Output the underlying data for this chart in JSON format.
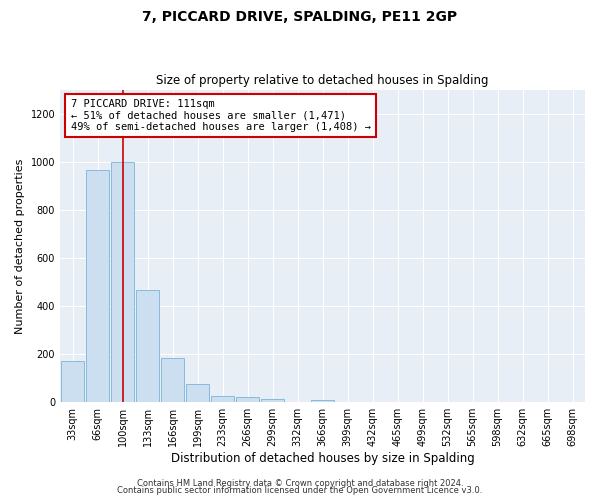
{
  "title": "7, PICCARD DRIVE, SPALDING, PE11 2GP",
  "subtitle": "Size of property relative to detached houses in Spalding",
  "xlabel": "Distribution of detached houses by size in Spalding",
  "ylabel": "Number of detached properties",
  "bar_labels": [
    "33sqm",
    "66sqm",
    "100sqm",
    "133sqm",
    "166sqm",
    "199sqm",
    "233sqm",
    "266sqm",
    "299sqm",
    "332sqm",
    "366sqm",
    "399sqm",
    "432sqm",
    "465sqm",
    "499sqm",
    "532sqm",
    "565sqm",
    "598sqm",
    "632sqm",
    "665sqm",
    "698sqm"
  ],
  "bar_values": [
    170,
    965,
    1000,
    465,
    185,
    75,
    25,
    20,
    15,
    0,
    10,
    0,
    0,
    0,
    0,
    0,
    0,
    0,
    0,
    0,
    0
  ],
  "bar_color": "#ccdff0",
  "bar_edgecolor": "#7ab4d8",
  "ylim": [
    0,
    1300
  ],
  "yticks": [
    0,
    200,
    400,
    600,
    800,
    1000,
    1200
  ],
  "vline_x_index": 2,
  "vline_color": "#cc0000",
  "annotation_line1": "7 PICCARD DRIVE: 111sqm",
  "annotation_line2": "← 51% of detached houses are smaller (1,471)",
  "annotation_line3": "49% of semi-detached houses are larger (1,408) →",
  "footer_line1": "Contains HM Land Registry data © Crown copyright and database right 2024.",
  "footer_line2": "Contains public sector information licensed under the Open Government Licence v3.0.",
  "background_color": "#ffffff",
  "plot_background": "#e8eef5",
  "grid_color": "#ffffff",
  "title_fontsize": 10,
  "subtitle_fontsize": 8.5,
  "ylabel_fontsize": 8,
  "xlabel_fontsize": 8.5,
  "tick_fontsize": 7,
  "footer_fontsize": 6,
  "ann_fontsize": 7.5
}
